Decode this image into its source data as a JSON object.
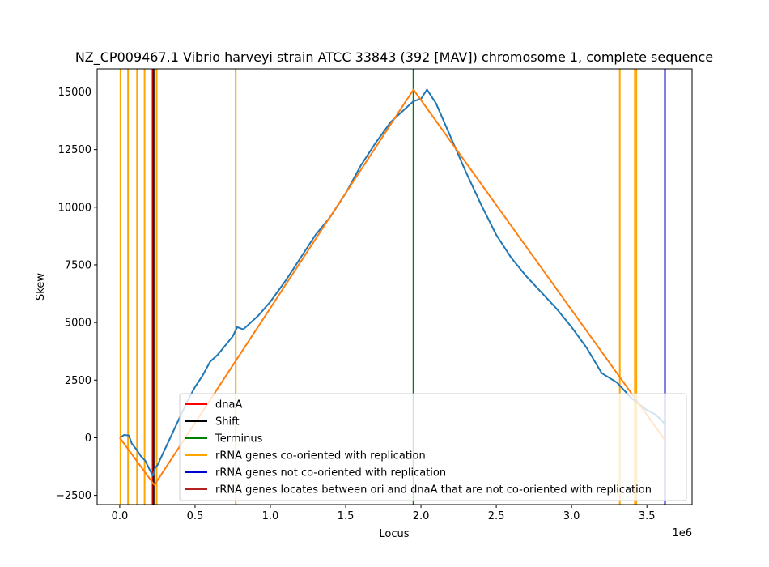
{
  "chart_data": {
    "type": "line",
    "title": "NZ_CP009467.1 Vibrio harveyi strain ATCC 33843 (392 [MAV]) chromosome 1, complete sequence",
    "xlabel": "Locus",
    "ylabel": "Skew",
    "x_offset_label": "1e6",
    "xlim": [
      -150000,
      3800000
    ],
    "ylim": [
      -2900,
      16000
    ],
    "x_ticks": [
      0,
      500000,
      1000000,
      1500000,
      2000000,
      2500000,
      3000000,
      3500000
    ],
    "x_tick_labels": [
      "0.0",
      "0.5",
      "1.0",
      "1.5",
      "2.0",
      "2.5",
      "3.0",
      "3.5"
    ],
    "y_ticks": [
      -2500,
      0,
      2500,
      5000,
      7500,
      10000,
      12500,
      15000
    ],
    "y_tick_labels": [
      "−2500",
      "0",
      "2500",
      "5000",
      "7500",
      "10000",
      "12500",
      "15000"
    ],
    "grid": false,
    "legend_position": "lower-center",
    "series": [
      {
        "color": "#1f77b4",
        "x": [
          0,
          30000,
          60000,
          80000,
          110000,
          140000,
          170000,
          200000,
          220000,
          235000,
          250000,
          300000,
          350000,
          400000,
          450000,
          500000,
          550000,
          600000,
          650000,
          700000,
          750000,
          780000,
          820000,
          870000,
          920000,
          1000000,
          1100000,
          1200000,
          1300000,
          1400000,
          1500000,
          1600000,
          1700000,
          1800000,
          1900000,
          1950000,
          2000000,
          2040000,
          2100000,
          2200000,
          2300000,
          2400000,
          2500000,
          2600000,
          2700000,
          2800000,
          2900000,
          3000000,
          3100000,
          3200000,
          3300000,
          3400000,
          3500000,
          3560000,
          3620000
        ],
        "y": [
          0,
          120,
          100,
          -250,
          -500,
          -800,
          -1000,
          -1400,
          -1650,
          -1300,
          -1200,
          -500,
          200,
          900,
          1600,
          2200,
          2700,
          3300,
          3600,
          4000,
          4400,
          4800,
          4700,
          5000,
          5300,
          5900,
          6800,
          7800,
          8800,
          9600,
          10600,
          11800,
          12800,
          13700,
          14300,
          14600,
          14700,
          15100,
          14500,
          13000,
          11500,
          10100,
          8800,
          7800,
          7000,
          6300,
          5600,
          4800,
          3900,
          2800,
          2400,
          1700,
          1200,
          1000,
          600
        ]
      },
      {
        "color": "#ff7f0e",
        "x": [
          0,
          230000,
          1950000,
          3620000
        ],
        "y": [
          0,
          -2050,
          15100,
          -100
        ]
      }
    ],
    "vlines": [
      {
        "kind": "rRNA genes co-oriented with replication",
        "color": "#ffa500",
        "x": 5000
      },
      {
        "kind": "rRNA genes co-oriented with replication",
        "color": "#ffa500",
        "x": 55000
      },
      {
        "kind": "rRNA genes co-oriented with replication",
        "color": "#ffa500",
        "x": 115000
      },
      {
        "kind": "rRNA genes co-oriented with replication",
        "color": "#ffa500",
        "x": 165000
      },
      {
        "kind": "rRNA genes co-oriented with replication",
        "color": "#ffa500",
        "x": 245000
      },
      {
        "kind": "rRNA genes co-oriented with replication",
        "color": "#ffa500",
        "x": 770000
      },
      {
        "kind": "rRNA genes co-oriented with replication",
        "color": "#ffa500",
        "x": 3320000
      },
      {
        "kind": "rRNA genes co-oriented with replication",
        "color": "#ffa500",
        "x": 3420000
      },
      {
        "kind": "rRNA genes co-oriented with replication",
        "color": "#ffa500",
        "x": 3430000
      },
      {
        "kind": "dnaA",
        "color": "#ff0000",
        "x": 218000
      },
      {
        "kind": "Shift",
        "color": "#000000",
        "x": 225000
      },
      {
        "kind": "Terminus",
        "color": "#008000",
        "x": 1950000
      },
      {
        "kind": "rRNA genes not co-oriented with replication",
        "color": "#0000cd",
        "x": 3620000
      }
    ],
    "legend": [
      {
        "label": "dnaA",
        "color": "#ff0000"
      },
      {
        "label": "Shift",
        "color": "#000000"
      },
      {
        "label": "Terminus",
        "color": "#008000"
      },
      {
        "label": "rRNA genes co-oriented with replication",
        "color": "#ffa500"
      },
      {
        "label": "rRNA genes not co-oriented with replication",
        "color": "#0000cd"
      },
      {
        "label": "rRNA genes locates between ori and dnaA that are not co-oriented with replication",
        "color": "#b22222"
      }
    ]
  }
}
